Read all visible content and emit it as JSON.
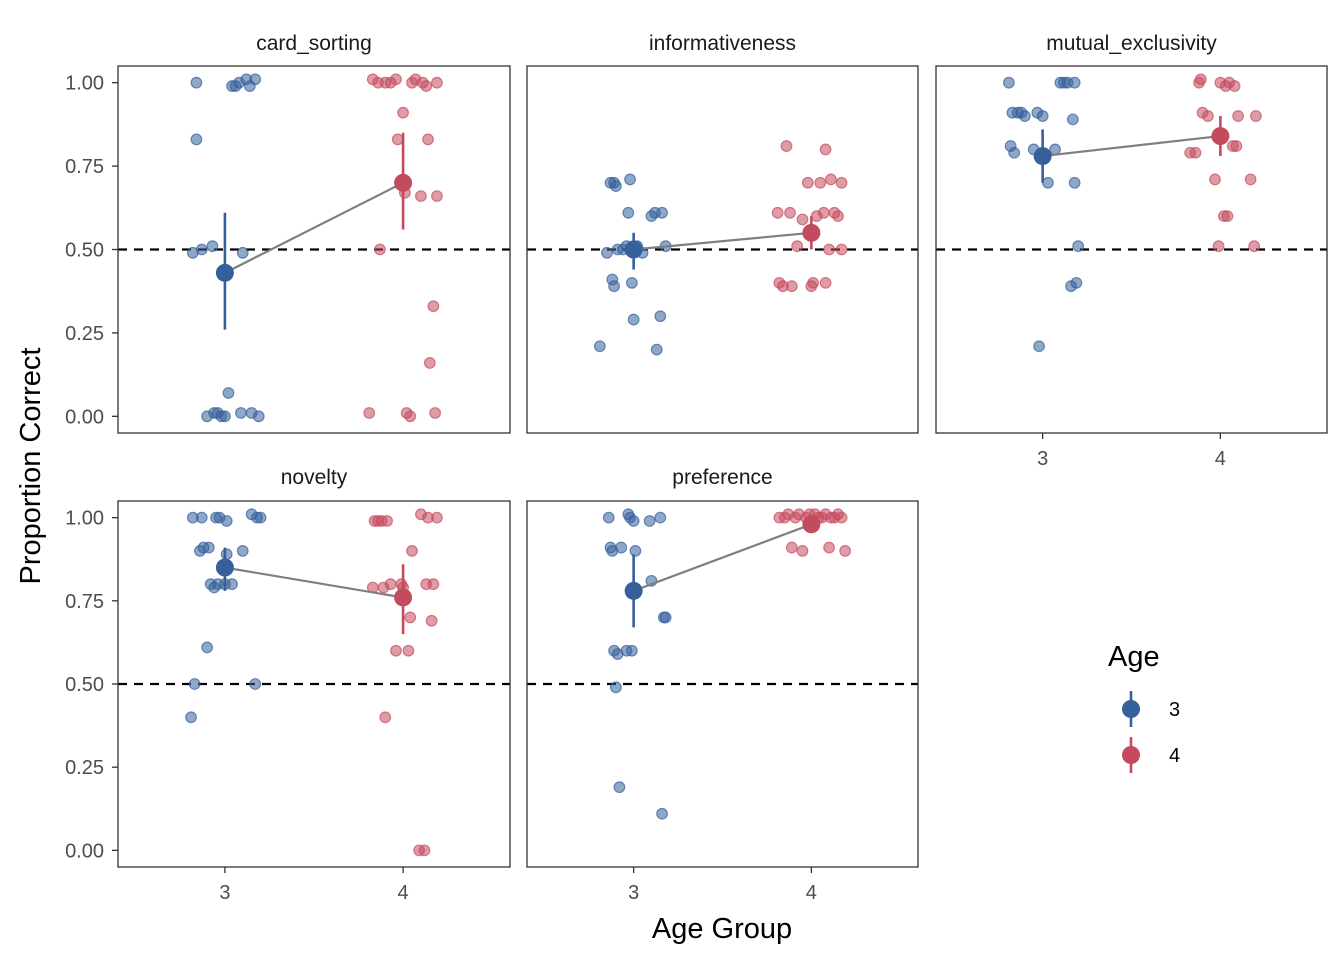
{
  "chart_data": {
    "type": "scatter",
    "xlabel": "Age Group",
    "ylabel": "Proportion Correct",
    "ylim": [
      -0.05,
      1.05
    ],
    "y_ticks": [
      "0.00",
      "0.25",
      "0.50",
      "0.75",
      "1.00"
    ],
    "x_categories": [
      "3",
      "4"
    ],
    "reference_line": 0.5,
    "legend": {
      "title": "Age",
      "entries": [
        "3",
        "4"
      ],
      "position": "right"
    },
    "colors": {
      "age3": "#35609b",
      "age4": "#c44b5e",
      "line": "#7f7f7f",
      "panel_border": "#333333"
    },
    "panels": [
      {
        "name": "card_sorting",
        "mean": {
          "3": 0.43,
          "4": 0.7
        },
        "ci": {
          "3": [
            0.26,
            0.61
          ],
          "4": [
            0.56,
            0.85
          ]
        },
        "points": {
          "3": [
            [
              2.82,
              0.49
            ],
            [
              2.84,
              1.0
            ],
            [
              2.84,
              0.83
            ],
            [
              2.87,
              0.5
            ],
            [
              2.9,
              0.0
            ],
            [
              2.93,
              0.51
            ],
            [
              2.94,
              0.01
            ],
            [
              2.96,
              0.01
            ],
            [
              2.98,
              0.0
            ],
            [
              3.0,
              0.0
            ],
            [
              3.02,
              0.07
            ],
            [
              3.04,
              0.99
            ],
            [
              3.06,
              0.99
            ],
            [
              3.08,
              1.0
            ],
            [
              3.09,
              0.01
            ],
            [
              3.1,
              0.49
            ],
            [
              3.12,
              1.01
            ],
            [
              3.14,
              0.99
            ],
            [
              3.15,
              0.01
            ],
            [
              3.17,
              1.01
            ],
            [
              3.19,
              0.0
            ]
          ],
          "4": [
            [
              3.81,
              0.01
            ],
            [
              3.83,
              1.01
            ],
            [
              3.86,
              1.0
            ],
            [
              3.87,
              0.5
            ],
            [
              3.9,
              1.0
            ],
            [
              3.93,
              1.0
            ],
            [
              3.96,
              1.01
            ],
            [
              3.97,
              0.83
            ],
            [
              4.0,
              0.91
            ],
            [
              4.01,
              0.67
            ],
            [
              4.02,
              0.01
            ],
            [
              4.04,
              0.0
            ],
            [
              4.05,
              1.0
            ],
            [
              4.07,
              1.01
            ],
            [
              4.1,
              0.66
            ],
            [
              4.11,
              1.0
            ],
            [
              4.13,
              0.99
            ],
            [
              4.14,
              0.83
            ],
            [
              4.15,
              0.16
            ],
            [
              4.17,
              0.33
            ],
            [
              4.18,
              0.01
            ],
            [
              4.19,
              0.66
            ],
            [
              4.19,
              1.0
            ]
          ]
        }
      },
      {
        "name": "informativeness",
        "mean": {
          "3": 0.5,
          "4": 0.55
        },
        "ci": {
          "3": [
            0.44,
            0.55
          ],
          "4": [
            0.5,
            0.6
          ]
        },
        "points": {
          "3": [
            [
              2.81,
              0.21
            ],
            [
              2.85,
              0.49
            ],
            [
              2.87,
              0.7
            ],
            [
              2.88,
              0.41
            ],
            [
              2.89,
              0.39
            ],
            [
              2.89,
              0.7
            ],
            [
              2.9,
              0.69
            ],
            [
              2.91,
              0.5
            ],
            [
              2.94,
              0.5
            ],
            [
              2.96,
              0.51
            ],
            [
              2.97,
              0.61
            ],
            [
              2.98,
              0.71
            ],
            [
              2.99,
              0.4
            ],
            [
              3.0,
              0.29
            ],
            [
              3.02,
              0.51
            ],
            [
              3.05,
              0.49
            ],
            [
              3.1,
              0.6
            ],
            [
              3.12,
              0.61
            ],
            [
              3.13,
              0.2
            ],
            [
              3.15,
              0.3
            ],
            [
              3.16,
              0.61
            ],
            [
              3.18,
              0.51
            ]
          ],
          "4": [
            [
              3.81,
              0.61
            ],
            [
              3.82,
              0.4
            ],
            [
              3.84,
              0.39
            ],
            [
              3.86,
              0.81
            ],
            [
              3.88,
              0.61
            ],
            [
              3.89,
              0.39
            ],
            [
              3.92,
              0.51
            ],
            [
              3.95,
              0.59
            ],
            [
              3.98,
              0.7
            ],
            [
              4.0,
              0.39
            ],
            [
              4.01,
              0.4
            ],
            [
              4.03,
              0.6
            ],
            [
              4.05,
              0.7
            ],
            [
              4.07,
              0.61
            ],
            [
              4.08,
              0.8
            ],
            [
              4.08,
              0.4
            ],
            [
              4.1,
              0.5
            ],
            [
              4.11,
              0.71
            ],
            [
              4.13,
              0.61
            ],
            [
              4.15,
              0.6
            ],
            [
              4.17,
              0.7
            ],
            [
              4.17,
              0.5
            ]
          ]
        }
      },
      {
        "name": "mutual_exclusivity",
        "mean": {
          "3": 0.78,
          "4": 0.84
        },
        "ci": {
          "3": [
            0.7,
            0.86
          ],
          "4": [
            0.78,
            0.9
          ]
        },
        "points": {
          "3": [
            [
              2.81,
              1.0
            ],
            [
              2.82,
              0.81
            ],
            [
              2.83,
              0.91
            ],
            [
              2.84,
              0.79
            ],
            [
              2.86,
              0.91
            ],
            [
              2.88,
              0.91
            ],
            [
              2.9,
              0.9
            ],
            [
              2.95,
              0.8
            ],
            [
              2.97,
              0.91
            ],
            [
              2.98,
              0.21
            ],
            [
              3.0,
              0.9
            ],
            [
              3.03,
              0.7
            ],
            [
              3.07,
              0.8
            ],
            [
              3.1,
              1.0
            ],
            [
              3.12,
              1.0
            ],
            [
              3.14,
              1.0
            ],
            [
              3.16,
              0.39
            ],
            [
              3.17,
              0.89
            ],
            [
              3.18,
              1.0
            ],
            [
              3.18,
              0.7
            ],
            [
              3.19,
              0.4
            ],
            [
              3.2,
              0.51
            ]
          ],
          "4": [
            [
              3.83,
              0.79
            ],
            [
              3.86,
              0.79
            ],
            [
              3.88,
              1.0
            ],
            [
              3.89,
              1.01
            ],
            [
              3.9,
              0.91
            ],
            [
              3.93,
              0.9
            ],
            [
              3.97,
              0.71
            ],
            [
              3.99,
              0.51
            ],
            [
              4.0,
              1.0
            ],
            [
              4.02,
              0.6
            ],
            [
              4.03,
              0.99
            ],
            [
              4.04,
              0.6
            ],
            [
              4.05,
              1.0
            ],
            [
              4.07,
              0.81
            ],
            [
              4.08,
              0.99
            ],
            [
              4.09,
              0.81
            ],
            [
              4.1,
              0.9
            ],
            [
              4.17,
              0.71
            ],
            [
              4.19,
              0.51
            ],
            [
              4.2,
              0.9
            ]
          ]
        }
      },
      {
        "name": "novelty",
        "mean": {
          "3": 0.85,
          "4": 0.76
        },
        "ci": {
          "3": [
            0.78,
            0.91
          ],
          "4": [
            0.65,
            0.86
          ]
        },
        "points": {
          "3": [
            [
              2.81,
              0.4
            ],
            [
              2.82,
              1.0
            ],
            [
              2.83,
              0.5
            ],
            [
              2.86,
              0.9
            ],
            [
              2.87,
              1.0
            ],
            [
              2.88,
              0.91
            ],
            [
              2.9,
              0.61
            ],
            [
              2.91,
              0.91
            ],
            [
              2.92,
              0.8
            ],
            [
              2.94,
              0.79
            ],
            [
              2.95,
              1.0
            ],
            [
              2.96,
              0.8
            ],
            [
              2.97,
              1.0
            ],
            [
              3.0,
              0.8
            ],
            [
              3.01,
              0.99
            ],
            [
              3.01,
              0.89
            ],
            [
              3.04,
              0.8
            ],
            [
              3.1,
              0.9
            ],
            [
              3.15,
              1.01
            ],
            [
              3.17,
              0.5
            ],
            [
              3.18,
              1.0
            ],
            [
              3.2,
              1.0
            ]
          ],
          "4": [
            [
              3.83,
              0.79
            ],
            [
              3.84,
              0.99
            ],
            [
              3.86,
              0.99
            ],
            [
              3.88,
              0.99
            ],
            [
              3.89,
              0.79
            ],
            [
              3.9,
              0.4
            ],
            [
              3.91,
              0.99
            ],
            [
              3.93,
              0.8
            ],
            [
              3.96,
              0.6
            ],
            [
              3.99,
              0.8
            ],
            [
              4.0,
              0.79
            ],
            [
              4.03,
              0.6
            ],
            [
              4.04,
              0.7
            ],
            [
              4.05,
              0.9
            ],
            [
              4.09,
              0.0
            ],
            [
              4.1,
              1.01
            ],
            [
              4.12,
              0.0
            ],
            [
              4.13,
              0.8
            ],
            [
              4.14,
              1.0
            ],
            [
              4.16,
              0.69
            ],
            [
              4.17,
              0.8
            ],
            [
              4.19,
              1.0
            ]
          ]
        }
      },
      {
        "name": "preference",
        "mean": {
          "3": 0.78,
          "4": 0.98
        },
        "ci": {
          "3": [
            0.67,
            0.89
          ],
          "4": [
            0.97,
            1.0
          ]
        },
        "points": {
          "3": [
            [
              2.86,
              1.0
            ],
            [
              2.87,
              0.91
            ],
            [
              2.88,
              0.9
            ],
            [
              2.89,
              0.6
            ],
            [
              2.9,
              0.49
            ],
            [
              2.91,
              0.59
            ],
            [
              2.92,
              0.19
            ],
            [
              2.93,
              0.91
            ],
            [
              2.96,
              0.6
            ],
            [
              2.97,
              1.01
            ],
            [
              2.98,
              1.0
            ],
            [
              2.99,
              0.6
            ],
            [
              3.0,
              0.99
            ],
            [
              3.01,
              0.9
            ],
            [
              3.09,
              0.99
            ],
            [
              3.1,
              0.81
            ],
            [
              3.15,
              1.0
            ],
            [
              3.16,
              0.11
            ],
            [
              3.17,
              0.7
            ],
            [
              3.18,
              0.7
            ]
          ],
          "4": [
            [
              3.82,
              1.0
            ],
            [
              3.85,
              1.0
            ],
            [
              3.87,
              1.01
            ],
            [
              3.89,
              0.91
            ],
            [
              3.91,
              1.0
            ],
            [
              3.93,
              1.01
            ],
            [
              3.95,
              0.9
            ],
            [
              3.97,
              1.0
            ],
            [
              3.99,
              1.01
            ],
            [
              4.01,
              0.99
            ],
            [
              4.02,
              1.01
            ],
            [
              4.04,
              1.0
            ],
            [
              4.06,
              1.0
            ],
            [
              4.08,
              1.01
            ],
            [
              4.1,
              0.91
            ],
            [
              4.11,
              1.0
            ],
            [
              4.13,
              1.0
            ],
            [
              4.15,
              1.01
            ],
            [
              4.17,
              1.0
            ],
            [
              4.19,
              0.9
            ]
          ]
        }
      }
    ]
  }
}
